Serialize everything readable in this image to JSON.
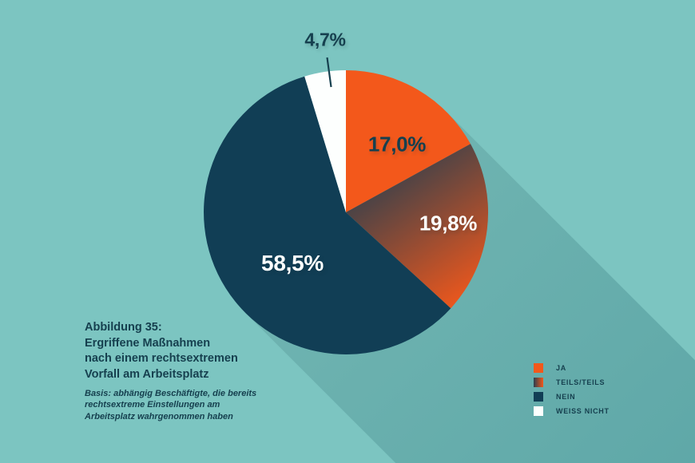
{
  "figure": {
    "caption_lines": [
      "Abbildung 35:",
      "Ergriffene Maßnahmen",
      "nach einem rechtsextremen",
      "Vorfall am Arbeitsplatz"
    ],
    "basis_lines": [
      "Basis: abhängig Beschäftigte, die bereits",
      "rechtsextreme Einstellungen am",
      "Arbeitsplatz wahrgenommen haben"
    ]
  },
  "colors": {
    "background": "#7CC5C1",
    "shadow_near": "#6FB4B1",
    "shadow_far": "#5FA8A8",
    "orange": "#F3581B",
    "navy": "#113E55",
    "white": "#FDFFFE",
    "text": "#16404F",
    "gradient_dark": "#2B3F4E"
  },
  "chart_data": {
    "type": "pie",
    "title": "Ergriffene Maßnahmen nach einem rechtsextremen Vorfall am Arbeitsplatz",
    "start_angle_deg": 0,
    "direction": "clockwise",
    "legend_position": "bottom-right",
    "grid": false,
    "slices": [
      {
        "label": "JA",
        "value": 17.0,
        "display": "17,0%",
        "color": "#F3581B"
      },
      {
        "label": "TEILS/TEILS",
        "value": 19.8,
        "display": "19,8%",
        "color_gradient": {
          "from": "#2B3F4E",
          "to": "#F3581B"
        }
      },
      {
        "label": "NEIN",
        "value": 58.5,
        "display": "58,5%",
        "color": "#113E55"
      },
      {
        "label": "WEISS NICHT",
        "value": 4.7,
        "display": "4,7%",
        "color": "#FDFFFE"
      }
    ]
  }
}
